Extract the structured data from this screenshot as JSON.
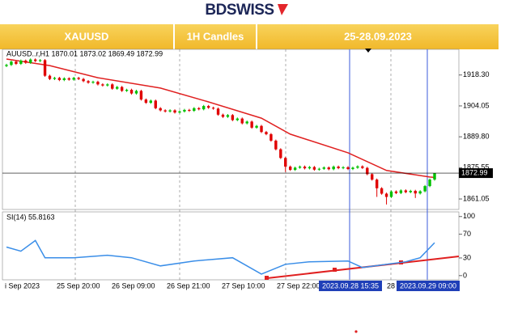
{
  "chart_data": {
    "type": "candlestick",
    "logo": "BDSWISS",
    "header": {
      "symbol": "XAUUSD",
      "timeframe": "1H Candles",
      "dates": "25-28.09.2023"
    },
    "info_label": "AUUSD..r,H1  1870.01 1873.02 1869.49 1872.99",
    "ylim": [
      1856.2,
      1930.2
    ],
    "yticks": [
      {
        "value": 1918.3,
        "label": "1918.30"
      },
      1904.05,
      {
        "value": 1889.8,
        "label": "1889.80"
      },
      1875.55,
      1861.05
    ],
    "last_price": 1872.99,
    "up_color": "#00c000",
    "down_color": "#e00000",
    "candles": [
      [
        1922.5,
        1923.5,
        1922,
        1923
      ],
      [
        1923,
        1925,
        1922.5,
        1924.5
      ],
      [
        1924.5,
        1925,
        1923,
        1923.5
      ],
      [
        1923.5,
        1925.5,
        1923,
        1925
      ],
      [
        1925,
        1925.5,
        1923.5,
        1924
      ],
      [
        1924,
        1926,
        1923.5,
        1925.5
      ],
      [
        1925.5,
        1926,
        1924.3,
        1924.8
      ],
      [
        1924.8,
        1925.7,
        1924.3,
        1925.2
      ],
      [
        1925.2,
        1925.7,
        1917.5,
        1918
      ],
      [
        1918,
        1918.5,
        1916,
        1916.5
      ],
      [
        1916.5,
        1917.5,
        1916,
        1917
      ],
      [
        1917,
        1917.5,
        1915.5,
        1916
      ],
      [
        1916,
        1917.3,
        1915.5,
        1916.8
      ],
      [
        1916.8,
        1917.3,
        1915.7,
        1916.2
      ],
      [
        1916.2,
        1917.5,
        1915.7,
        1917
      ],
      [
        1917,
        1917.5,
        1916,
        1916.5
      ],
      [
        1916.5,
        1917,
        1915,
        1915.5
      ],
      [
        1915.5,
        1916,
        1914.3,
        1914.8
      ],
      [
        1914.8,
        1915.7,
        1914.3,
        1915.2
      ],
      [
        1915.2,
        1915.7,
        1913.5,
        1914
      ],
      [
        1914,
        1914.5,
        1913,
        1913.5
      ],
      [
        1913.5,
        1914.5,
        1913,
        1914
      ],
      [
        1914,
        1914.5,
        1911.5,
        1912
      ],
      [
        1912,
        1913.3,
        1911.5,
        1912.8
      ],
      [
        1912.8,
        1913.3,
        1910.5,
        1911
      ],
      [
        1911,
        1912,
        1910.5,
        1911.5
      ],
      [
        1911.5,
        1912,
        1909.3,
        1909.8
      ],
      [
        1909.8,
        1911.5,
        1909.3,
        1911
      ],
      [
        1911,
        1911.5,
        1906.5,
        1907
      ],
      [
        1907,
        1907.5,
        1905,
        1905.5
      ],
      [
        1905.5,
        1907,
        1905,
        1906.5
      ],
      [
        1906.5,
        1907,
        1902.5,
        1903
      ],
      [
        1903,
        1903.5,
        1901.5,
        1902
      ],
      [
        1902,
        1902.5,
        1901,
        1901.5
      ],
      [
        1901.5,
        1902.5,
        1901,
        1902
      ],
      [
        1902,
        1902.5,
        1900.5,
        1901
      ],
      [
        1901,
        1902,
        1900.5,
        1901.5
      ],
      [
        1901.5,
        1902.7,
        1901,
        1902.2
      ],
      [
        1902.2,
        1902.7,
        1901.3,
        1901.8
      ],
      [
        1901.8,
        1903.5,
        1901.3,
        1903
      ],
      [
        1903,
        1903.5,
        1902,
        1902.5
      ],
      [
        1902.5,
        1904.5,
        1902,
        1904
      ],
      [
        1904,
        1904.5,
        1902.7,
        1903.2
      ],
      [
        1903.2,
        1903.7,
        1902.3,
        1902.8
      ],
      [
        1902.8,
        1903.3,
        1899.5,
        1900
      ],
      [
        1900,
        1900.5,
        1898.5,
        1899
      ],
      [
        1899,
        1900.3,
        1898.5,
        1899.8
      ],
      [
        1899.8,
        1900.3,
        1897,
        1897.5
      ],
      [
        1897.5,
        1898.7,
        1897,
        1898.2
      ],
      [
        1898.2,
        1898.7,
        1895.5,
        1896
      ],
      [
        1896,
        1897.3,
        1895.5,
        1896.8
      ],
      [
        1896.8,
        1897.3,
        1893.5,
        1894
      ],
      [
        1894,
        1895.3,
        1893.5,
        1894.8
      ],
      [
        1894.8,
        1895.3,
        1891.5,
        1892
      ],
      [
        1892,
        1892.5,
        1890.5,
        1891
      ],
      [
        1891,
        1891.5,
        1887.5,
        1888
      ],
      [
        1888,
        1888.5,
        1883.5,
        1884
      ],
      [
        1884,
        1884.5,
        1879.5,
        1880
      ],
      [
        1880,
        1880.5,
        1873.5,
        1876
      ],
      [
        1876,
        1876.5,
        1874,
        1874.5
      ],
      [
        1874.5,
        1876,
        1874,
        1875.5
      ],
      [
        1875.5,
        1876.5,
        1875,
        1876
      ],
      [
        1876,
        1876.5,
        1874.7,
        1875.2
      ],
      [
        1875.2,
        1876.3,
        1874.7,
        1875.8
      ],
      [
        1875.8,
        1876.3,
        1874.1,
        1874.6
      ],
      [
        1874.6,
        1875.5,
        1874.1,
        1875
      ],
      [
        1875,
        1876.1,
        1874.5,
        1875.6
      ],
      [
        1875.6,
        1876.1,
        1874.3,
        1874.8
      ],
      [
        1874.8,
        1876.5,
        1874.3,
        1876
      ],
      [
        1876,
        1876.5,
        1874.8,
        1875.3
      ],
      [
        1875.3,
        1876.2,
        1874.8,
        1875.7
      ],
      [
        1875.7,
        1876.2,
        1874.4,
        1874.9
      ],
      [
        1874.9,
        1876,
        1874.4,
        1875.5
      ],
      [
        1875.5,
        1876.6,
        1875,
        1876.1
      ],
      [
        1876.1,
        1876.6,
        1874.9,
        1875.4
      ],
      [
        1875.4,
        1875.9,
        1872,
        1872.5
      ],
      [
        1872.5,
        1873,
        1869.5,
        1870
      ],
      [
        1870,
        1870.5,
        1862,
        1866
      ],
      [
        1866,
        1866.5,
        1863,
        1863.5
      ],
      [
        1863.5,
        1864,
        1858.5,
        1862
      ],
      [
        1862,
        1865,
        1861.5,
        1864.5
      ],
      [
        1864.5,
        1865,
        1863.3,
        1863.8
      ],
      [
        1863.8,
        1865.5,
        1863.3,
        1865
      ],
      [
        1865,
        1865.5,
        1863.7,
        1864.2
      ],
      [
        1864.2,
        1865.3,
        1863.7,
        1864.8
      ],
      [
        1864.8,
        1865.3,
        1861.5,
        1863.6
      ],
      [
        1863.6,
        1865.1,
        1863.1,
        1864.6
      ],
      [
        1864.6,
        1867.5,
        1864.1,
        1867
      ],
      [
        1867,
        1870.5,
        1866.5,
        1870.01
      ],
      [
        1870.01,
        1873.02,
        1869.49,
        1872.99
      ]
    ],
    "ma": {
      "color": "#e02020",
      "x": [
        0,
        9,
        19,
        32,
        42,
        53,
        59,
        71,
        79,
        88,
        89
      ],
      "values": [
        1925.7,
        1922.7,
        1917.1,
        1912.3,
        1905.9,
        1898.4,
        1891,
        1882.4,
        1874.2,
        1871.2,
        1871
      ]
    },
    "rsi": {
      "label": "SI(14) 55.8163",
      "color": "#3a8ee8",
      "ylim": [
        -7,
        108
      ],
      "yticks": [
        100,
        70,
        30,
        0
      ],
      "x": [
        0,
        3,
        6,
        8,
        14,
        21,
        26,
        32,
        39,
        47,
        53,
        58,
        63,
        71,
        74,
        83,
        86,
        89
      ],
      "values": [
        48.4,
        41.5,
        59.5,
        30.4,
        30.4,
        34.6,
        30.4,
        16.6,
        24.9,
        30.4,
        2.7,
        19.3,
        23.5,
        24.9,
        13.8,
        23.5,
        30.4,
        55.8163
      ]
    },
    "x_labels": [
      "i Sep 2023",
      "25 Sep 20:00",
      "26 Sep 09:00",
      "26 Sep 21:00",
      "27 Sep 10:00",
      "27 Sep 22:00",
      "28"
    ],
    "markers": [
      "2023.09.28 15:35",
      "2023.09.29 09:00"
    ]
  }
}
